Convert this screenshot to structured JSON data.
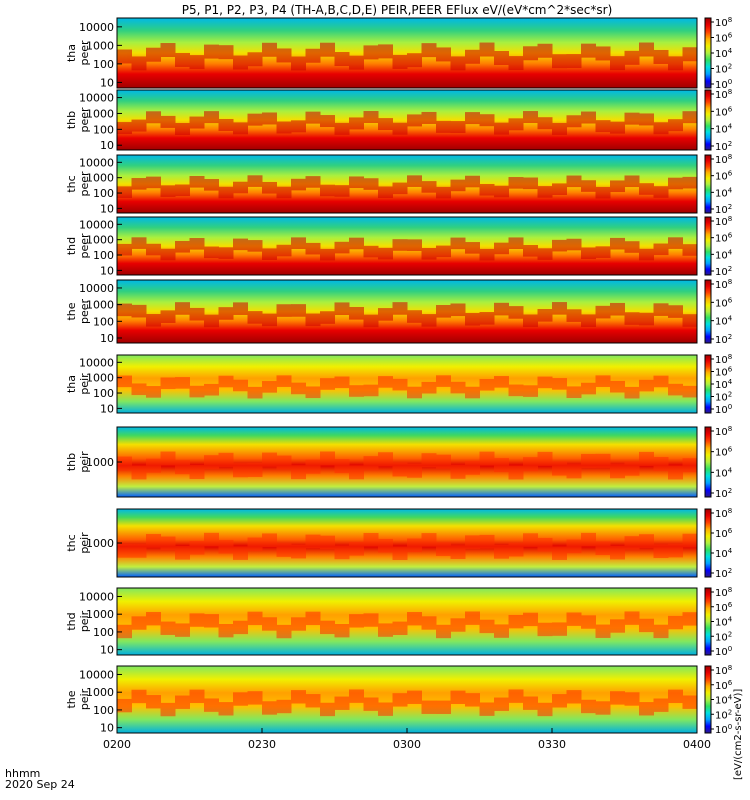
{
  "title": "P5, P1, P2, P3, P4 (TH-A,B,C,D,E) PEIR,PEER EFlux eV/(eV*cm^2*sec*sr)",
  "chart_data": {
    "type": "heatmap",
    "x_ticks": [
      "0200",
      "0230",
      "0300",
      "0330",
      "0400"
    ],
    "x_tick_values_min": [
      0,
      30,
      60,
      90,
      120
    ],
    "x_range_min": [
      0,
      120
    ],
    "date_label": "2020 Sep 24",
    "time_label": "hhmm",
    "y_scale": "log",
    "colorbar_scale": "log",
    "colorbar_unit": "[eV/(cm2-s-sr-eV)]",
    "panels": [
      {
        "line1": "tha",
        "line2": "peer",
        "y_ticks": [
          "10",
          "100",
          "1000",
          "10000"
        ],
        "y_tick_values": [
          10,
          100,
          1000,
          10000
        ],
        "cbar_ticks": [
          "10^8",
          "10^6",
          "10^4",
          "10^2",
          "10^0"
        ]
      },
      {
        "line1": "thb",
        "line2": "peer",
        "y_ticks": [
          "10",
          "100",
          "1000",
          "10000"
        ],
        "y_tick_values": [
          10,
          100,
          1000,
          10000
        ],
        "cbar_ticks": [
          "10^8",
          "10^6",
          "10^4",
          "10^2"
        ]
      },
      {
        "line1": "thc",
        "line2": "peer",
        "y_ticks": [
          "10",
          "100",
          "1000",
          "10000"
        ],
        "y_tick_values": [
          10,
          100,
          1000,
          10000
        ],
        "cbar_ticks": [
          "10^8",
          "10^6",
          "10^4",
          "10^2"
        ]
      },
      {
        "line1": "thd",
        "line2": "peer",
        "y_ticks": [
          "10",
          "100",
          "1000",
          "10000"
        ],
        "y_tick_values": [
          10,
          100,
          1000,
          10000
        ],
        "cbar_ticks": [
          "10^8",
          "10^6",
          "10^4",
          "10^2"
        ]
      },
      {
        "line1": "the",
        "line2": "peer",
        "y_ticks": [
          "10",
          "100",
          "1000",
          "10000"
        ],
        "y_tick_values": [
          10,
          100,
          1000,
          10000
        ],
        "cbar_ticks": [
          "10^8",
          "10^6",
          "10^4",
          "10^2"
        ]
      },
      {
        "line1": "tha",
        "line2": "peir",
        "y_ticks": [
          "10",
          "100",
          "1000",
          "10000"
        ],
        "y_tick_values": [
          10,
          100,
          1000,
          10000
        ],
        "cbar_ticks": [
          "10^8",
          "10^6",
          "10^4",
          "10^2",
          "10^0"
        ]
      },
      {
        "line1": "thb",
        "line2": "peir",
        "y_ticks": [
          "1000"
        ],
        "y_tick_values": [
          1000
        ],
        "cbar_ticks": [
          "10^8",
          "10^6",
          "10^4",
          "10^2"
        ]
      },
      {
        "line1": "thc",
        "line2": "peir",
        "y_ticks": [
          "1000"
        ],
        "y_tick_values": [
          1000
        ],
        "cbar_ticks": [
          "10^8",
          "10^6",
          "10^4",
          "10^2"
        ]
      },
      {
        "line1": "thd",
        "line2": "peir",
        "y_ticks": [
          "10",
          "100",
          "1000",
          "10000"
        ],
        "y_tick_values": [
          10,
          100,
          1000,
          10000
        ],
        "cbar_ticks": [
          "10^8",
          "10^6",
          "10^4",
          "10^2",
          "10^0"
        ]
      },
      {
        "line1": "the",
        "line2": "peir",
        "y_ticks": [
          "10",
          "100",
          "1000",
          "10000"
        ],
        "y_tick_values": [
          10,
          100,
          1000,
          10000
        ],
        "cbar_ticks": [
          "10^8",
          "10^6",
          "10^4",
          "10^2",
          "10^0"
        ]
      }
    ],
    "colormap": [
      "#2c1a8a",
      "#0000ff",
      "#00a0ff",
      "#00e0e0",
      "#30e060",
      "#b0f040",
      "#f0f000",
      "#ffb000",
      "#ff4000",
      "#e80000",
      "#a00000"
    ]
  }
}
